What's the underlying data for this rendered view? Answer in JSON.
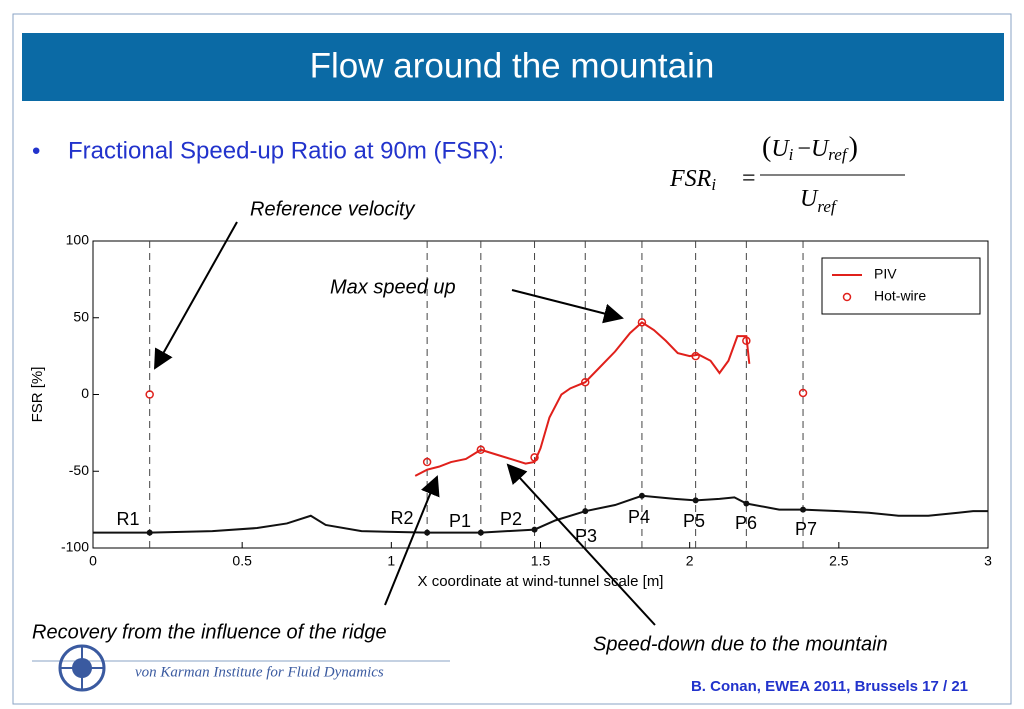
{
  "slide_title": "Flow around the mountain",
  "bullet": "Fractional Speed-up Ratio at 90m (FSR):",
  "formula": {
    "lhs": "FSR",
    "lhs_sub": "i",
    "eq": "=",
    "num": [
      "(",
      "U",
      "i",
      "−",
      "U",
      "ref",
      ")"
    ],
    "den": [
      "U",
      "ref"
    ]
  },
  "chart_data": {
    "type": "line",
    "xlabel": "X coordinate at wind-tunnel scale [m]",
    "ylabel": "FSR [%]",
    "xlim": [
      0,
      3
    ],
    "ylim": [
      -100,
      100
    ],
    "xticks": [
      0,
      0.5,
      1,
      1.5,
      2,
      2.5,
      3
    ],
    "yticks": [
      -100,
      -50,
      0,
      50,
      100
    ],
    "grid": false,
    "legend": "upper right",
    "series": [
      {
        "name": "PIV",
        "color": "#e0201b",
        "style": "line",
        "x": [
          1.08,
          1.12,
          1.16,
          1.2,
          1.25,
          1.3,
          1.35,
          1.4,
          1.45,
          1.48,
          1.5,
          1.53,
          1.57,
          1.6,
          1.65,
          1.7,
          1.75,
          1.8,
          1.84,
          1.88,
          1.92,
          1.96,
          2.0,
          2.03,
          2.07,
          2.1,
          2.13,
          2.16,
          2.19,
          2.2
        ],
        "values": [
          -53,
          -49,
          -47,
          -44,
          -42,
          -36,
          -39,
          -42,
          -45,
          -44,
          -35,
          -15,
          0,
          4,
          8,
          18,
          28,
          40,
          47,
          42,
          35,
          27,
          25,
          26,
          22,
          14,
          22,
          38,
          38,
          20
        ]
      },
      {
        "name": "Hot-wire",
        "color": "#e0201b",
        "style": "markers",
        "x": [
          0.19,
          1.12,
          1.3,
          1.48,
          1.65,
          1.84,
          2.02,
          2.19,
          2.38
        ],
        "values": [
          0,
          -44,
          -36,
          -41,
          8,
          47,
          25,
          35,
          1
        ]
      },
      {
        "color": "#111111",
        "style": "line",
        "x": [
          0,
          0.19,
          0.4,
          0.55,
          0.65,
          0.73,
          0.78,
          0.9,
          1.12,
          1.3,
          1.48,
          1.55,
          1.65,
          1.75,
          1.84,
          1.95,
          2.02,
          2.1,
          2.15,
          2.19,
          2.3,
          2.38,
          2.5,
          2.6,
          2.7,
          2.8,
          2.9,
          2.95,
          3.0
        ],
        "values": [
          -90,
          -90,
          -89,
          -87,
          -84,
          -79,
          -85,
          -89,
          -90,
          -90,
          -88,
          -82,
          -76,
          -72,
          -66,
          -68,
          -69,
          -68,
          -67,
          -71,
          -75,
          -75,
          -76,
          -77,
          -79,
          -79,
          -77,
          -76,
          -76
        ]
      },
      {
        "color": "#111111",
        "style": "dots",
        "x": [
          0.19,
          1.12,
          1.3,
          1.48,
          1.65,
          1.84,
          2.02,
          2.19,
          2.38
        ],
        "values": [
          -90,
          -90,
          -90,
          -88,
          -76,
          -66,
          -69,
          -71,
          -75
        ]
      }
    ],
    "probes": [
      {
        "label": "R1",
        "x": 0.19
      },
      {
        "label": "R2",
        "x": 1.12
      },
      {
        "label": "P1",
        "x": 1.3
      },
      {
        "label": "P2",
        "x": 1.48
      },
      {
        "label": "P3",
        "x": 1.65
      },
      {
        "label": "P4",
        "x": 1.84
      },
      {
        "label": "P5",
        "x": 2.02
      },
      {
        "label": "P6",
        "x": 2.19
      },
      {
        "label": "P7",
        "x": 2.38
      }
    ],
    "annotations": [
      "Reference velocity",
      "Max speed up",
      "Recovery from the influence of the ridge",
      "Speed-down due to the mountain"
    ]
  },
  "footer": {
    "institute": "von Karman Institute for Fluid Dynamics",
    "credit": "B. Conan, EWEA 2011, Brussels  17 / 21"
  }
}
